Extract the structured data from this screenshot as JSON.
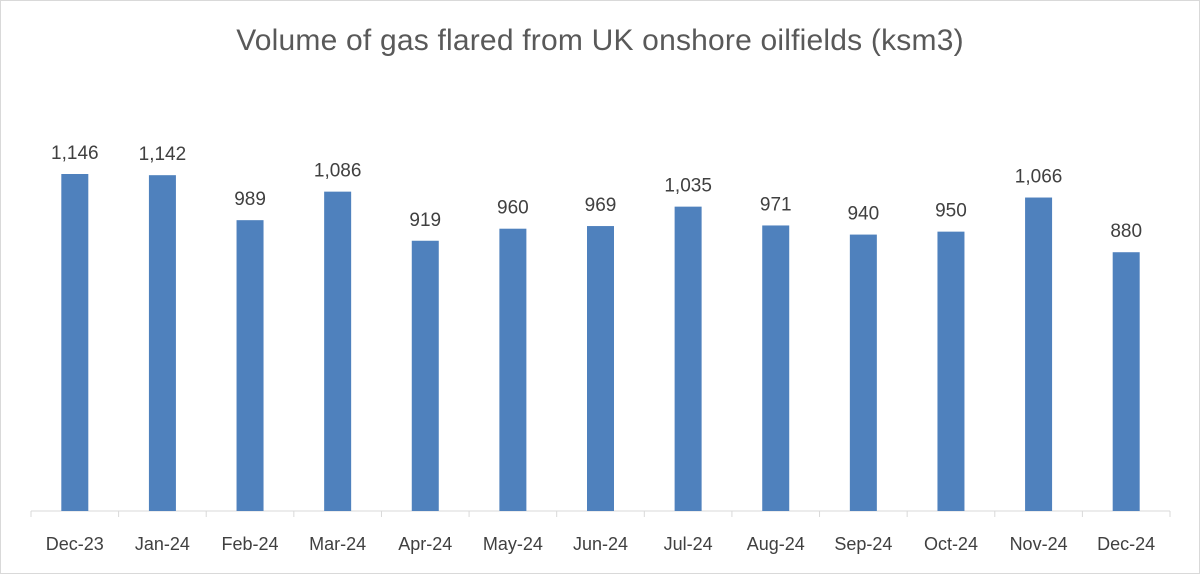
{
  "chart_data": {
    "type": "bar",
    "title": "Volume of gas flared from UK onshore oilfields (ksm3)",
    "xlabel": "",
    "ylabel": "",
    "categories": [
      "Dec-23",
      "Jan-24",
      "Feb-24",
      "Mar-24",
      "Apr-24",
      "May-24",
      "Jun-24",
      "Jul-24",
      "Aug-24",
      "Sep-24",
      "Oct-24",
      "Nov-24",
      "Dec-24"
    ],
    "values": [
      1146,
      1142,
      989,
      1086,
      919,
      960,
      969,
      1035,
      971,
      940,
      950,
      1066,
      880
    ],
    "data_labels": [
      "1,146",
      "1,142",
      "989",
      "1,086",
      "919",
      "960",
      "969",
      "1,035",
      "971",
      "940",
      "950",
      "1,066",
      "880"
    ],
    "ylim": [
      0,
      1146
    ],
    "grid": false,
    "legend": "none",
    "bar_color": "#4f81bd"
  }
}
